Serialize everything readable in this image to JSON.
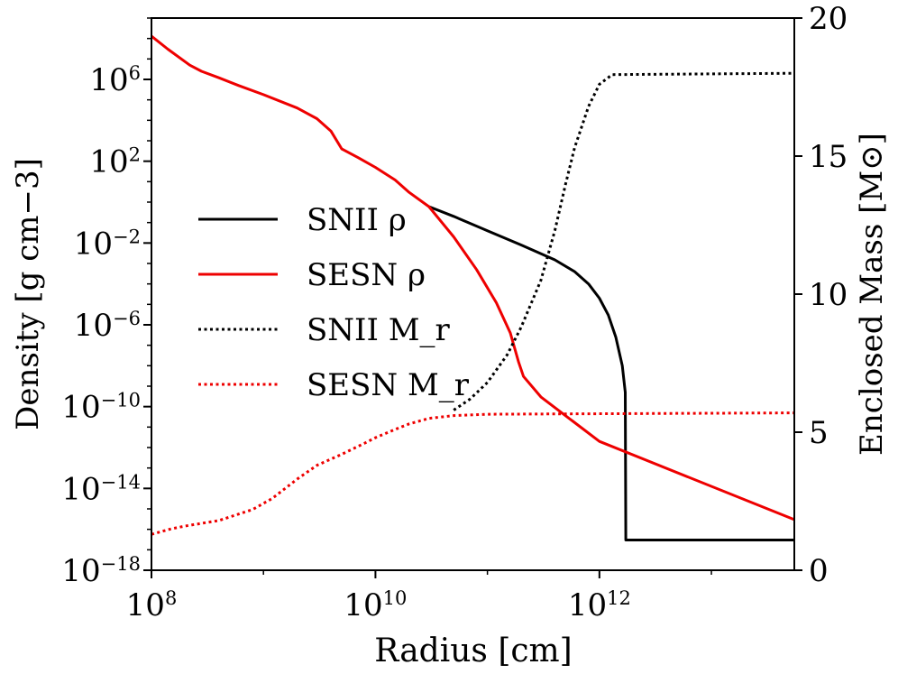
{
  "chart_data": {
    "type": "line",
    "xlabel": "Radius [cm]",
    "ylabel_left": "Density [g cm−3]",
    "ylabel_right": "Enclosed Mass [M⊙]",
    "x_scale": "log",
    "y_left_scale": "log",
    "y_right_scale": "linear",
    "xlim": [
      100000000.0,
      55000000000000.0
    ],
    "ylim_left": [
      1e-18,
      1000000000.0
    ],
    "ylim_right": [
      0,
      20
    ],
    "x_ticks": [
      {
        "base": "10",
        "exp": "8"
      },
      {
        "base": "10",
        "exp": "10"
      },
      {
        "base": "10",
        "exp": "12"
      }
    ],
    "y_left_ticks": [
      {
        "base": "10",
        "exp": "6"
      },
      {
        "base": "10",
        "exp": "2"
      },
      {
        "base": "10",
        "exp": "−2"
      },
      {
        "base": "10",
        "exp": "−6"
      },
      {
        "base": "10",
        "exp": "−10"
      },
      {
        "base": "10",
        "exp": "−14"
      },
      {
        "base": "10",
        "exp": "−18"
      }
    ],
    "y_right_ticks": [
      "0",
      "5",
      "10",
      "15",
      "20"
    ],
    "grid": false,
    "legend_placement": "center-left",
    "legend": [
      {
        "label": "SNII ρ",
        "color": "#000000",
        "style": "solid"
      },
      {
        "label": "SESN ρ",
        "color": "#ee0000",
        "style": "solid"
      },
      {
        "label": "SNII M_r",
        "color": "#000000",
        "style": "dotted"
      },
      {
        "label": "SESN M_r",
        "color": "#ee0000",
        "style": "dotted"
      }
    ],
    "series": [
      {
        "name": "SNII ρ",
        "axis": "left",
        "color": "#000000",
        "style": "solid",
        "points": [
          [
            30000000000.0,
            0.6
          ],
          [
            50000000000.0,
            0.2
          ],
          [
            100000000000.0,
            0.04
          ],
          [
            200000000000.0,
            0.008
          ],
          [
            400000000000.0,
            0.0015
          ],
          [
            600000000000.0,
            0.0004
          ],
          [
            800000000000.0,
            0.0001
          ],
          [
            1000000000000.0,
            2e-05
          ],
          [
            1200000000000.0,
            3e-06
          ],
          [
            1400000000000.0,
            2.5e-07
          ],
          [
            1600000000000.0,
            1e-08
          ],
          [
            1700000000000.0,
            5e-10
          ],
          [
            1720000000000.0,
            3e-17
          ],
          [
            55000000000000.0,
            3e-17
          ]
        ]
      },
      {
        "name": "SESN ρ",
        "axis": "left",
        "color": "#ee0000",
        "style": "solid",
        "points": [
          [
            100000000.0,
            130000000.0
          ],
          [
            140000000.0,
            30000000.0
          ],
          [
            220000000.0,
            5000000.0
          ],
          [
            280000000.0,
            2500000.0
          ],
          [
            400000000.0,
            1200000.0
          ],
          [
            600000000.0,
            500000.0
          ],
          [
            1000000000.0,
            180000.0
          ],
          [
            2000000000.0,
            40000.0
          ],
          [
            3000000000.0,
            12000.0
          ],
          [
            4000000000.0,
            3000.0
          ],
          [
            5000000000.0,
            400.0
          ],
          [
            7000000000.0,
            150
          ],
          [
            10000000000.0,
            50
          ],
          [
            15000000000.0,
            12
          ],
          [
            20000000000.0,
            3
          ],
          [
            30000000000.0,
            0.6
          ],
          [
            50000000000.0,
            0.02
          ],
          [
            80000000000.0,
            0.0005
          ],
          [
            120000000000.0,
            1.2e-05
          ],
          [
            160000000000.0,
            4e-07
          ],
          [
            190000000000.0,
            1.5e-08
          ],
          [
            210000000000.0,
            3e-09
          ],
          [
            300000000000.0,
            3e-10
          ],
          [
            1000000000000.0,
            2e-12
          ],
          [
            55000000000000.0,
            3e-16
          ]
        ]
      },
      {
        "name": "SNII M_r",
        "axis": "right",
        "color": "#000000",
        "style": "dotted",
        "points": [
          [
            50000000000.0,
            5.8
          ],
          [
            70000000000.0,
            6.2
          ],
          [
            100000000000.0,
            6.8
          ],
          [
            150000000000.0,
            7.8
          ],
          [
            200000000000.0,
            8.8
          ],
          [
            300000000000.0,
            10.5
          ],
          [
            400000000000.0,
            12.3
          ],
          [
            500000000000.0,
            14.0
          ],
          [
            600000000000.0,
            15.3
          ],
          [
            800000000000.0,
            16.8
          ],
          [
            1000000000000.0,
            17.6
          ],
          [
            1300000000000.0,
            17.95
          ],
          [
            55000000000000.0,
            18.0
          ]
        ]
      },
      {
        "name": "SESN M_r",
        "axis": "right",
        "color": "#ee0000",
        "style": "dotted",
        "points": [
          [
            100000000.0,
            1.3
          ],
          [
            150000000.0,
            1.5
          ],
          [
            200000000.0,
            1.6
          ],
          [
            400000000.0,
            1.8
          ],
          [
            800000000.0,
            2.2
          ],
          [
            1200000000.0,
            2.6
          ],
          [
            2000000000.0,
            3.3
          ],
          [
            3000000000.0,
            3.8
          ],
          [
            5000000000.0,
            4.2
          ],
          [
            8000000000.0,
            4.6
          ],
          [
            10000000000.0,
            4.8
          ],
          [
            15000000000.0,
            5.1
          ],
          [
            20000000000.0,
            5.3
          ],
          [
            30000000000.0,
            5.5
          ],
          [
            50000000000.0,
            5.6
          ],
          [
            100000000000.0,
            5.65
          ],
          [
            55000000000000.0,
            5.7
          ]
        ]
      }
    ]
  }
}
